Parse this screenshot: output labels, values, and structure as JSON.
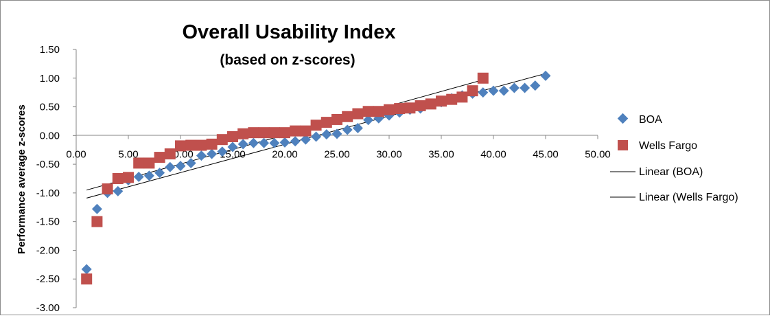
{
  "chart_data": {
    "type": "scatter",
    "title": "Overall Usability Index",
    "subtitle": "(based on z-scores)",
    "xlabel": "",
    "ylabel": "Performance average z-scores",
    "xlim": [
      0,
      50
    ],
    "ylim": [
      -3.0,
      1.5
    ],
    "x_ticks": [
      "0.00",
      "5.00",
      "10.00",
      "15.00",
      "20.00",
      "25.00",
      "30.00",
      "35.00",
      "40.00",
      "45.00",
      "50.00"
    ],
    "y_ticks": [
      "1.50",
      "1.00",
      "0.50",
      "0.00",
      "-0.50",
      "-1.00",
      "-1.50",
      "-2.00",
      "-2.50",
      "-3.00"
    ],
    "grid": false,
    "legend_position": "right",
    "series": [
      {
        "name": "BOA",
        "marker": "diamond",
        "color": "#4f81bd",
        "x": [
          1,
          2,
          3,
          4,
          5,
          6,
          7,
          8,
          9,
          10,
          11,
          12,
          13,
          14,
          15,
          16,
          17,
          18,
          19,
          20,
          21,
          22,
          23,
          24,
          25,
          26,
          27,
          28,
          29,
          30,
          31,
          32,
          33,
          34,
          35,
          36,
          37,
          38,
          39,
          40,
          41,
          42,
          43,
          44,
          45
        ],
        "y": [
          -2.33,
          -1.28,
          -1.0,
          -0.97,
          -0.78,
          -0.72,
          -0.7,
          -0.65,
          -0.55,
          -0.53,
          -0.48,
          -0.35,
          -0.32,
          -0.28,
          -0.2,
          -0.15,
          -0.13,
          -0.13,
          -0.13,
          -0.12,
          -0.1,
          -0.07,
          -0.02,
          0.02,
          0.03,
          0.1,
          0.13,
          0.27,
          0.3,
          0.35,
          0.4,
          0.45,
          0.47,
          0.55,
          0.58,
          0.65,
          0.7,
          0.73,
          0.75,
          0.78,
          0.78,
          0.83,
          0.83,
          0.87,
          1.04
        ]
      },
      {
        "name": "Wells Fargo",
        "marker": "square",
        "color": "#c0504d",
        "x": [
          1,
          2,
          3,
          4,
          5,
          6,
          7,
          8,
          9,
          10,
          11,
          12,
          13,
          14,
          15,
          16,
          17,
          18,
          19,
          20,
          21,
          22,
          23,
          24,
          25,
          26,
          27,
          28,
          29,
          30,
          31,
          32,
          33,
          34,
          35,
          36,
          37,
          38,
          39
        ],
        "y": [
          -2.5,
          -1.5,
          -0.93,
          -0.75,
          -0.73,
          -0.48,
          -0.48,
          -0.38,
          -0.32,
          -0.18,
          -0.17,
          -0.17,
          -0.15,
          -0.07,
          -0.02,
          0.03,
          0.05,
          0.05,
          0.05,
          0.05,
          0.08,
          0.08,
          0.18,
          0.23,
          0.28,
          0.33,
          0.38,
          0.42,
          0.42,
          0.45,
          0.47,
          0.48,
          0.52,
          0.55,
          0.6,
          0.63,
          0.67,
          0.78,
          1.0
        ]
      }
    ],
    "trendlines": [
      {
        "name": "Linear (BOA)",
        "type": "linear",
        "color": "#000000",
        "x": [
          1,
          45
        ],
        "y": [
          -1.09,
          1.08
        ]
      },
      {
        "name": "Linear (Wells Fargo)",
        "type": "linear",
        "color": "#000000",
        "x": [
          1,
          39
        ],
        "y": [
          -0.95,
          0.97
        ]
      }
    ]
  }
}
